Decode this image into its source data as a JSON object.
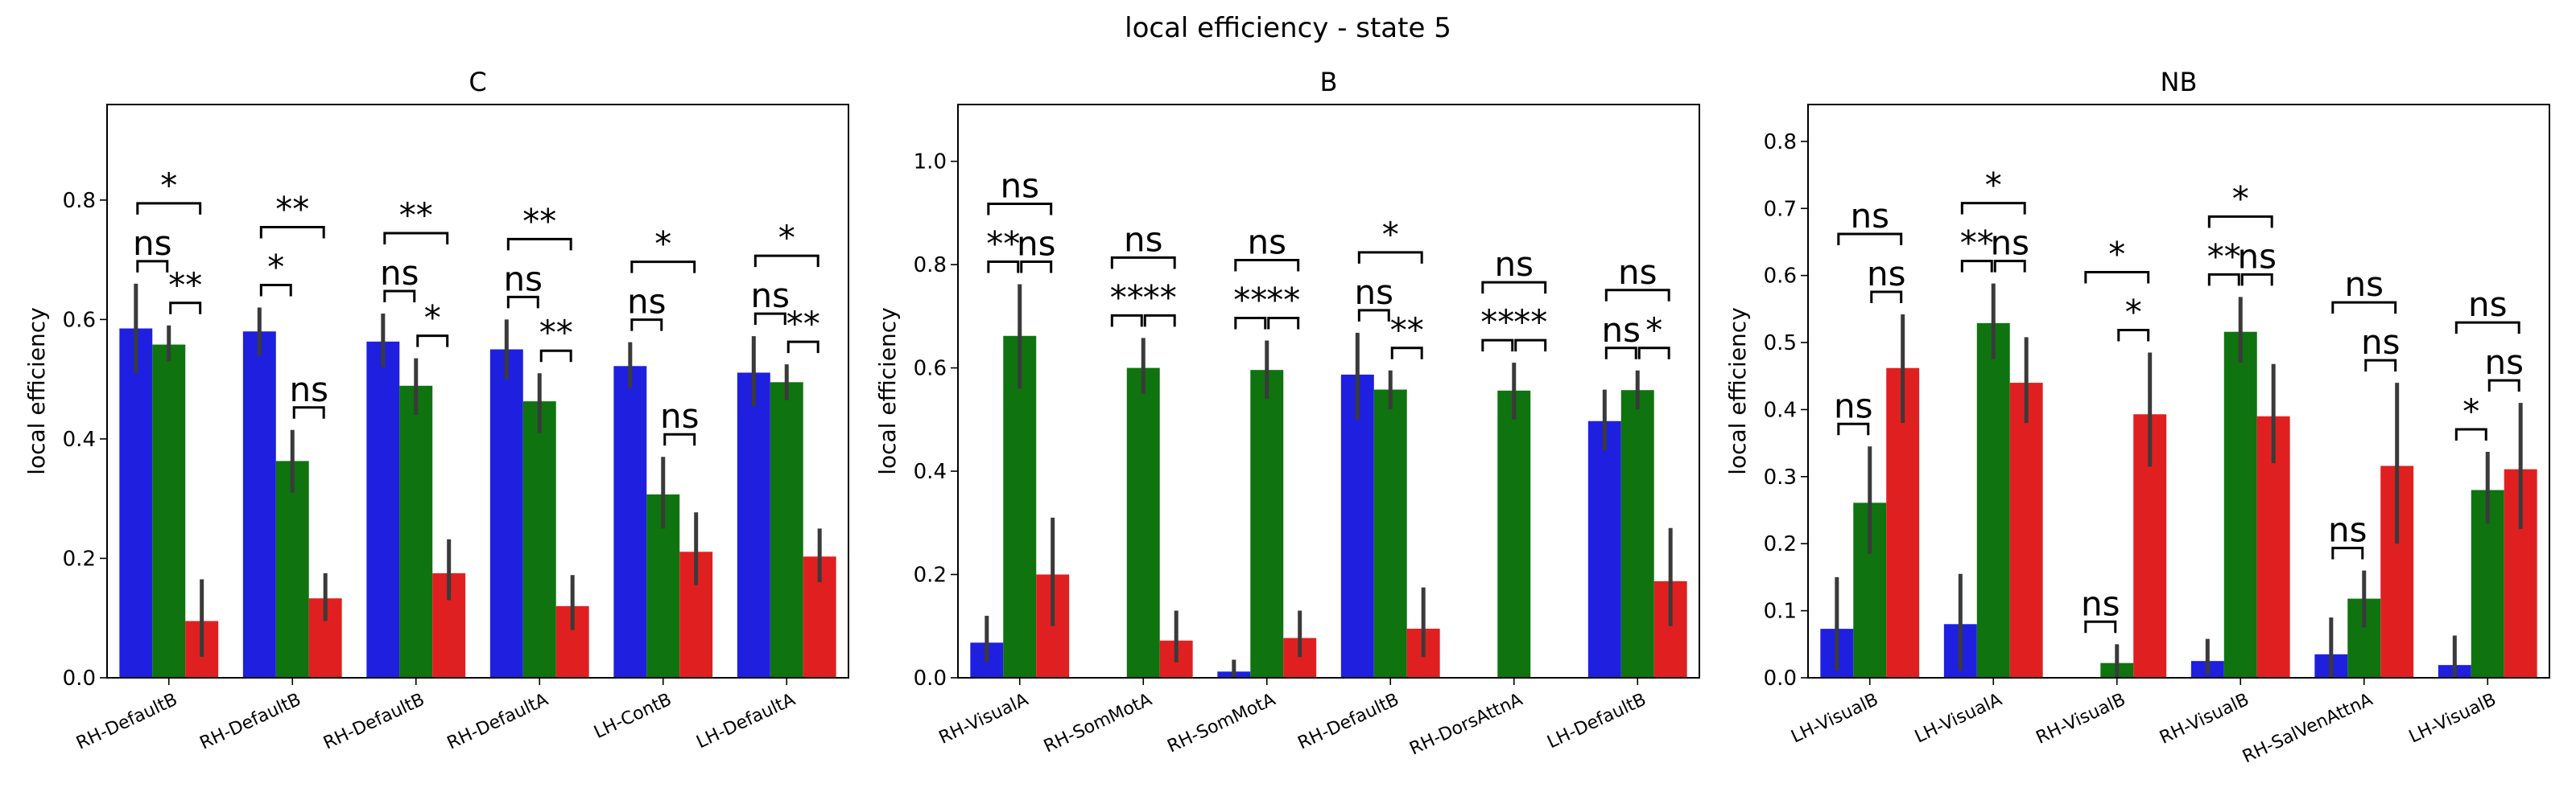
{
  "figure": {
    "suptitle": "local efficiency - state 5"
  },
  "colors": {
    "blue": "#1f1fe0",
    "green": "#0f730f",
    "red": "#e02020",
    "errbar": "#3a3a3a"
  },
  "chart_data": [
    {
      "type": "bar",
      "title": "C",
      "xlabel": "",
      "ylabel": "local efficiency",
      "ylim": [
        0,
        0.96
      ],
      "yticks": [
        "0.0",
        "0.2",
        "0.4",
        "0.6",
        "0.8"
      ],
      "categories": [
        "RH-DefaultB",
        "RH-DefaultB",
        "RH-DefaultB",
        "RH-DefaultA",
        "LH-ContB",
        "LH-DefaultA"
      ],
      "series": [
        {
          "values": [
            0.585,
            0.58,
            0.563,
            0.55,
            0.522,
            0.511
          ],
          "err_low": [
            0.51,
            0.54,
            0.52,
            0.5,
            0.485,
            0.455
          ],
          "err_high": [
            0.66,
            0.62,
            0.61,
            0.6,
            0.562,
            0.572
          ]
        },
        {
          "values": [
            0.558,
            0.363,
            0.489,
            0.463,
            0.307,
            0.495
          ],
          "err_low": [
            0.53,
            0.31,
            0.44,
            0.41,
            0.25,
            0.465
          ],
          "err_high": [
            0.59,
            0.415,
            0.535,
            0.51,
            0.37,
            0.525
          ]
        },
        {
          "values": [
            0.095,
            0.133,
            0.175,
            0.12,
            0.211,
            0.203
          ],
          "err_low": [
            0.035,
            0.095,
            0.13,
            0.08,
            0.155,
            0.16
          ],
          "err_high": [
            0.165,
            0.175,
            0.232,
            0.172,
            0.277,
            0.25
          ]
        }
      ],
      "annotations": [
        {
          "cat": 0,
          "pairs": [
            [
              "0",
              "1",
              "ns"
            ],
            [
              "1",
              "2",
              "**"
            ],
            [
              "0",
              "2",
              "*"
            ]
          ]
        },
        {
          "cat": 1,
          "pairs": [
            [
              "0",
              "1",
              "*"
            ],
            [
              "1",
              "2",
              "ns"
            ],
            [
              "0",
              "2",
              "**"
            ]
          ]
        },
        {
          "cat": 2,
          "pairs": [
            [
              "0",
              "1",
              "ns"
            ],
            [
              "1",
              "2",
              "*"
            ],
            [
              "0",
              "2",
              "**"
            ]
          ]
        },
        {
          "cat": 3,
          "pairs": [
            [
              "0",
              "1",
              "ns"
            ],
            [
              "1",
              "2",
              "**"
            ],
            [
              "0",
              "2",
              "**"
            ]
          ]
        },
        {
          "cat": 4,
          "pairs": [
            [
              "0",
              "1",
              "ns"
            ],
            [
              "1",
              "2",
              "ns"
            ],
            [
              "0",
              "2",
              "*"
            ]
          ]
        },
        {
          "cat": 5,
          "pairs": [
            [
              "0",
              "1",
              "ns"
            ],
            [
              "1",
              "2",
              "**"
            ],
            [
              "0",
              "2",
              "*"
            ]
          ]
        }
      ]
    },
    {
      "type": "bar",
      "title": "B",
      "xlabel": "",
      "ylabel": "local efficiency",
      "ylim": [
        0,
        1.11
      ],
      "yticks": [
        "0.0",
        "0.2",
        "0.4",
        "0.6",
        "0.8",
        "1.0"
      ],
      "categories": [
        "RH-VisualA",
        "RH-SomMotA",
        "RH-SomMotA",
        "RH-DefaultB",
        "RH-DorsAttnA",
        "LH-DefaultB"
      ],
      "series": [
        {
          "values": [
            0.068,
            0.0,
            0.012,
            0.587,
            0.0,
            0.497
          ],
          "err_low": [
            0.03,
            0.0,
            0.0,
            0.5,
            0.0,
            0.44
          ],
          "err_high": [
            0.12,
            0.0,
            0.035,
            0.668,
            0.0,
            0.558
          ]
        },
        {
          "values": [
            0.662,
            0.6,
            0.596,
            0.558,
            0.556,
            0.557
          ],
          "err_low": [
            0.56,
            0.55,
            0.54,
            0.52,
            0.5,
            0.52
          ],
          "err_high": [
            0.762,
            0.658,
            0.653,
            0.595,
            0.61,
            0.595
          ]
        },
        {
          "values": [
            0.2,
            0.072,
            0.077,
            0.095,
            0.0,
            0.187
          ],
          "err_low": [
            0.1,
            0.03,
            0.04,
            0.04,
            0.0,
            0.1
          ],
          "err_high": [
            0.31,
            0.13,
            0.13,
            0.175,
            0.0,
            0.29
          ]
        }
      ],
      "annotations": [
        {
          "cat": 0,
          "pairs": [
            [
              "0",
              "1",
              "**"
            ],
            [
              "1",
              "2",
              "ns"
            ],
            [
              "0",
              "2",
              "ns"
            ]
          ]
        },
        {
          "cat": 1,
          "pairs": [
            [
              "0",
              "1",
              "**"
            ],
            [
              "1",
              "2",
              "**"
            ],
            [
              "0",
              "2",
              "ns"
            ]
          ]
        },
        {
          "cat": 2,
          "pairs": [
            [
              "0",
              "1",
              "**"
            ],
            [
              "1",
              "2",
              "**"
            ],
            [
              "0",
              "2",
              "ns"
            ]
          ]
        },
        {
          "cat": 3,
          "pairs": [
            [
              "0",
              "1",
              "ns"
            ],
            [
              "1",
              "2",
              "**"
            ],
            [
              "0",
              "2",
              "*"
            ]
          ]
        },
        {
          "cat": 4,
          "pairs": [
            [
              "0",
              "1",
              "**"
            ],
            [
              "1",
              "2",
              "**"
            ],
            [
              "0",
              "2",
              "ns"
            ]
          ]
        },
        {
          "cat": 5,
          "pairs": [
            [
              "0",
              "1",
              "ns"
            ],
            [
              "1",
              "2",
              "*"
            ],
            [
              "0",
              "2",
              "ns"
            ]
          ]
        }
      ]
    },
    {
      "type": "bar",
      "title": "NB",
      "xlabel": "",
      "ylabel": "local efficiency",
      "ylim": [
        0,
        0.855
      ],
      "yticks": [
        "0.0",
        "0.1",
        "0.2",
        "0.3",
        "0.4",
        "0.5",
        "0.6",
        "0.7",
        "0.8"
      ],
      "categories": [
        "LH-VisualB",
        "LH-VisualA",
        "RH-VisualB",
        "RH-VisualB",
        "RH-SalVenAttnA",
        "LH-VisualB"
      ],
      "series": [
        {
          "values": [
            0.073,
            0.08,
            0.0,
            0.025,
            0.035,
            0.019
          ],
          "err_low": [
            0.01,
            0.01,
            0.0,
            0.005,
            0.0,
            0.0
          ],
          "err_high": [
            0.15,
            0.155,
            0.0,
            0.058,
            0.09,
            0.063
          ]
        },
        {
          "values": [
            0.261,
            0.529,
            0.022,
            0.516,
            0.118,
            0.28
          ],
          "err_low": [
            0.185,
            0.475,
            0.0,
            0.47,
            0.075,
            0.23
          ],
          "err_high": [
            0.345,
            0.588,
            0.05,
            0.568,
            0.16,
            0.337
          ]
        },
        {
          "values": [
            0.462,
            0.44,
            0.393,
            0.39,
            0.316,
            0.311
          ],
          "err_low": [
            0.38,
            0.38,
            0.315,
            0.32,
            0.2,
            0.222
          ],
          "err_high": [
            0.542,
            0.508,
            0.485,
            0.468,
            0.44,
            0.41
          ]
        }
      ],
      "annotations": [
        {
          "cat": 0,
          "pairs": [
            [
              "0",
              "1",
              "ns"
            ],
            [
              "1",
              "2",
              "ns"
            ],
            [
              "0",
              "2",
              "ns"
            ]
          ]
        },
        {
          "cat": 1,
          "pairs": [
            [
              "0",
              "1",
              "**"
            ],
            [
              "1",
              "2",
              "ns"
            ],
            [
              "0",
              "2",
              "*"
            ]
          ]
        },
        {
          "cat": 2,
          "pairs": [
            [
              "0",
              "1",
              "ns"
            ],
            [
              "1",
              "2",
              "*"
            ],
            [
              "0",
              "2",
              "*"
            ]
          ]
        },
        {
          "cat": 3,
          "pairs": [
            [
              "0",
              "1",
              "**"
            ],
            [
              "1",
              "2",
              "ns"
            ],
            [
              "0",
              "2",
              "*"
            ]
          ]
        },
        {
          "cat": 4,
          "pairs": [
            [
              "0",
              "1",
              "ns"
            ],
            [
              "1",
              "2",
              "ns"
            ],
            [
              "0",
              "2",
              "ns"
            ]
          ]
        },
        {
          "cat": 5,
          "pairs": [
            [
              "0",
              "1",
              "*"
            ],
            [
              "1",
              "2",
              "ns"
            ],
            [
              "0",
              "2",
              "ns"
            ]
          ]
        }
      ]
    }
  ]
}
